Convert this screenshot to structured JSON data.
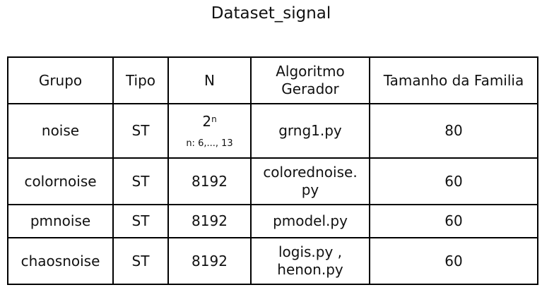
{
  "title": "Dataset_signal",
  "headers": {
    "grupo": "Grupo",
    "tipo": "Tipo",
    "n": "N",
    "algoritmo_line1": "Algoritmo",
    "algoritmo_line2": "Gerador",
    "tamanho": "Tamanho da Familia"
  },
  "rows": [
    {
      "grupo": "noise",
      "tipo": "ST",
      "n_base": "2",
      "n_exponent": "n",
      "n_range": "n: 6,..., 13",
      "algoritmo_line1": "grng1.py",
      "algoritmo_line2": "",
      "tamanho": "80"
    },
    {
      "grupo": "colornoise",
      "tipo": "ST",
      "n": "8192",
      "algoritmo_line1": "colorednoise.",
      "algoritmo_line2": "py",
      "tamanho": "60"
    },
    {
      "grupo": "pmnoise",
      "tipo": "ST",
      "n": "8192",
      "algoritmo_line1": "pmodel.py",
      "algoritmo_line2": "",
      "tamanho": "60"
    },
    {
      "grupo": "chaosnoise",
      "tipo": "ST",
      "n": "8192",
      "algoritmo_line1": "logis.py ,",
      "algoritmo_line2": "henon.py",
      "tamanho": "60"
    }
  ]
}
